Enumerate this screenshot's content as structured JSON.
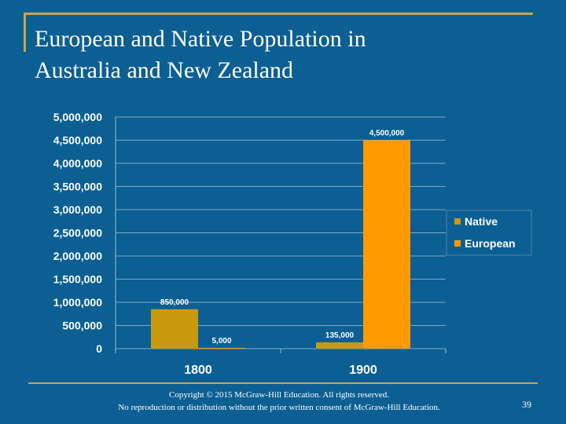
{
  "slide": {
    "title_line1": "European and Native Population in",
    "title_line2": "Australia and New Zealand",
    "copyright_line1": "Copyright © 2015 McGraw-Hill Education. All rights reserved.",
    "copyright_line2": "No reproduction or distribution without the prior written consent of McGraw-Hill Education.",
    "page_number": "39"
  },
  "chart_data": {
    "type": "bar",
    "categories": [
      "1800",
      "1900"
    ],
    "series": [
      {
        "name": "Native",
        "values": [
          850000,
          135000
        ],
        "color": "#c99a0e",
        "labels": [
          "850,000",
          "135,000"
        ]
      },
      {
        "name": "European",
        "values": [
          5000,
          4500000
        ],
        "color": "#ff9a00",
        "labels": [
          "5,000",
          "4,500,000"
        ]
      }
    ],
    "ylim": [
      0,
      5000000
    ],
    "yticks": [
      0,
      500000,
      1000000,
      1500000,
      2000000,
      2500000,
      3000000,
      3500000,
      4000000,
      4500000,
      5000000
    ],
    "ytick_labels": [
      "0",
      "500,000",
      "1,000,000",
      "1,500,000",
      "2,000,000",
      "2,500,000",
      "3,000,000",
      "3,500,000",
      "4,000,000",
      "4,500,000",
      "5,000,000"
    ],
    "grid": true,
    "legend_position": "right"
  }
}
